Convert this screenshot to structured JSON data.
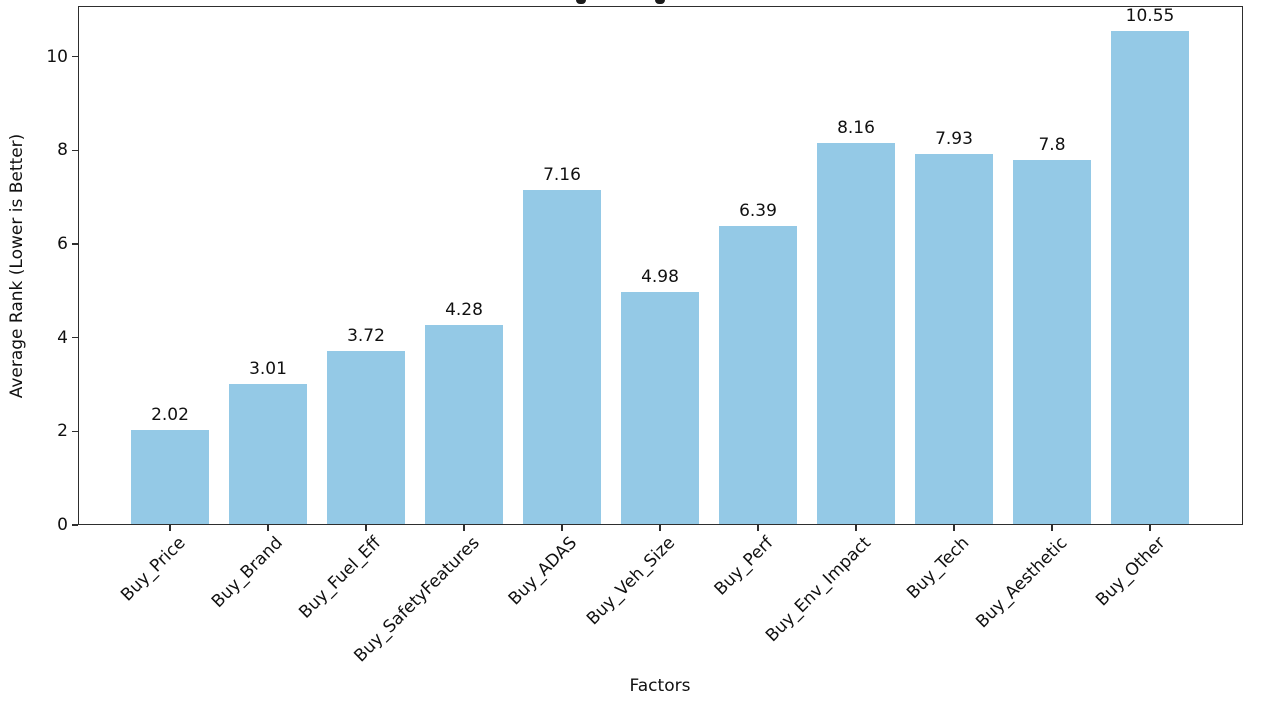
{
  "chart_data": {
    "type": "bar",
    "categories": [
      "Buy_Price",
      "Buy_Brand",
      "Buy_Fuel_Eff",
      "Buy_SafetyFeatures",
      "Buy_ADAS",
      "Buy_Veh_Size",
      "Buy_Perf",
      "Buy_Env_Impact",
      "Buy_Tech",
      "Buy_Aesthetic",
      "Buy_Other"
    ],
    "values": [
      2.02,
      3.01,
      3.72,
      4.28,
      7.16,
      4.98,
      6.39,
      8.16,
      7.93,
      7.8,
      10.55
    ],
    "bar_labels": [
      "2.02",
      "3.01",
      "3.72",
      "4.28",
      "7.16",
      "4.98",
      "6.39",
      "8.16",
      "7.93",
      "7.8",
      "10.55"
    ],
    "xlabel": "Factors",
    "ylabel": "Average Rank (Lower is Better)",
    "yticks": [
      0,
      2,
      4,
      6,
      8,
      10
    ],
    "ylim": [
      0,
      11.08
    ],
    "xtick_rotation_deg": 45,
    "bar_color": "#94c9e6",
    "text_color": "#111111",
    "spine_color": "#2e2e2e",
    "grid": false,
    "legend": null,
    "title_visible": false
  }
}
